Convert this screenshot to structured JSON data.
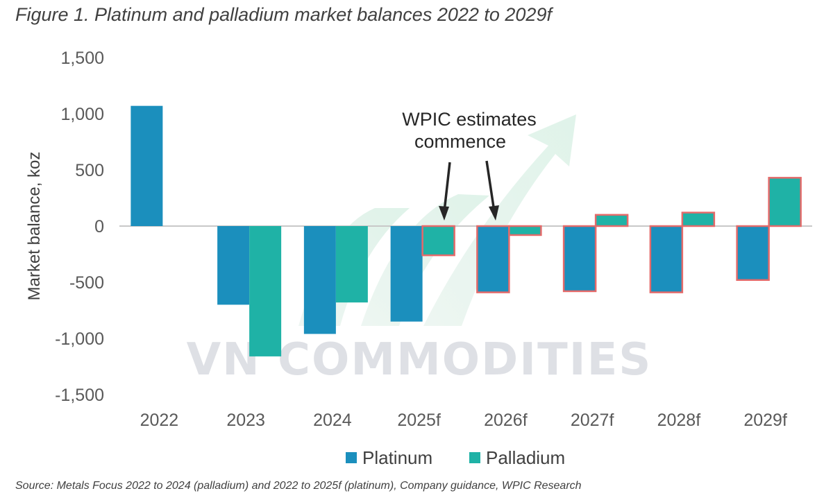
{
  "title": "Figure 1. Platinum and palladium market balances 2022 to 2029f",
  "source": "Source: Metals Focus 2022 to 2024 (palladium) and 2022 to 2025f (platinum), Company guidance, WPIC Research",
  "watermark": "VN COMMODITIES",
  "chart_data": {
    "type": "bar",
    "categories": [
      "2022",
      "2023",
      "2024",
      "2025f",
      "2026f",
      "2027f",
      "2028f",
      "2029f"
    ],
    "series": [
      {
        "name": "Platinum",
        "color": "#1b8fbd",
        "values": [
          1070,
          -700,
          -960,
          -850,
          -590,
          -580,
          -590,
          -480
        ]
      },
      {
        "name": "Palladium",
        "color": "#1fb2a6",
        "values": [
          null,
          -1160,
          -680,
          -260,
          -80,
          100,
          120,
          430
        ]
      }
    ],
    "estimate_outline_color": "#e46a6a",
    "ylabel": "Market balance, koz",
    "ylim": [
      -1500,
      1500
    ],
    "yticks": [
      1500,
      1000,
      500,
      0,
      -500,
      -1000,
      -1500
    ],
    "ytick_labels": [
      "1,500",
      "1,000",
      "500",
      "0",
      "-500",
      "-1,000",
      "-1,500"
    ],
    "legend": {
      "position": "bottom",
      "entries": [
        "Platinum",
        "Palladium"
      ]
    },
    "annotation": {
      "lines": [
        "WPIC estimates",
        "commence"
      ]
    },
    "grid": false
  }
}
